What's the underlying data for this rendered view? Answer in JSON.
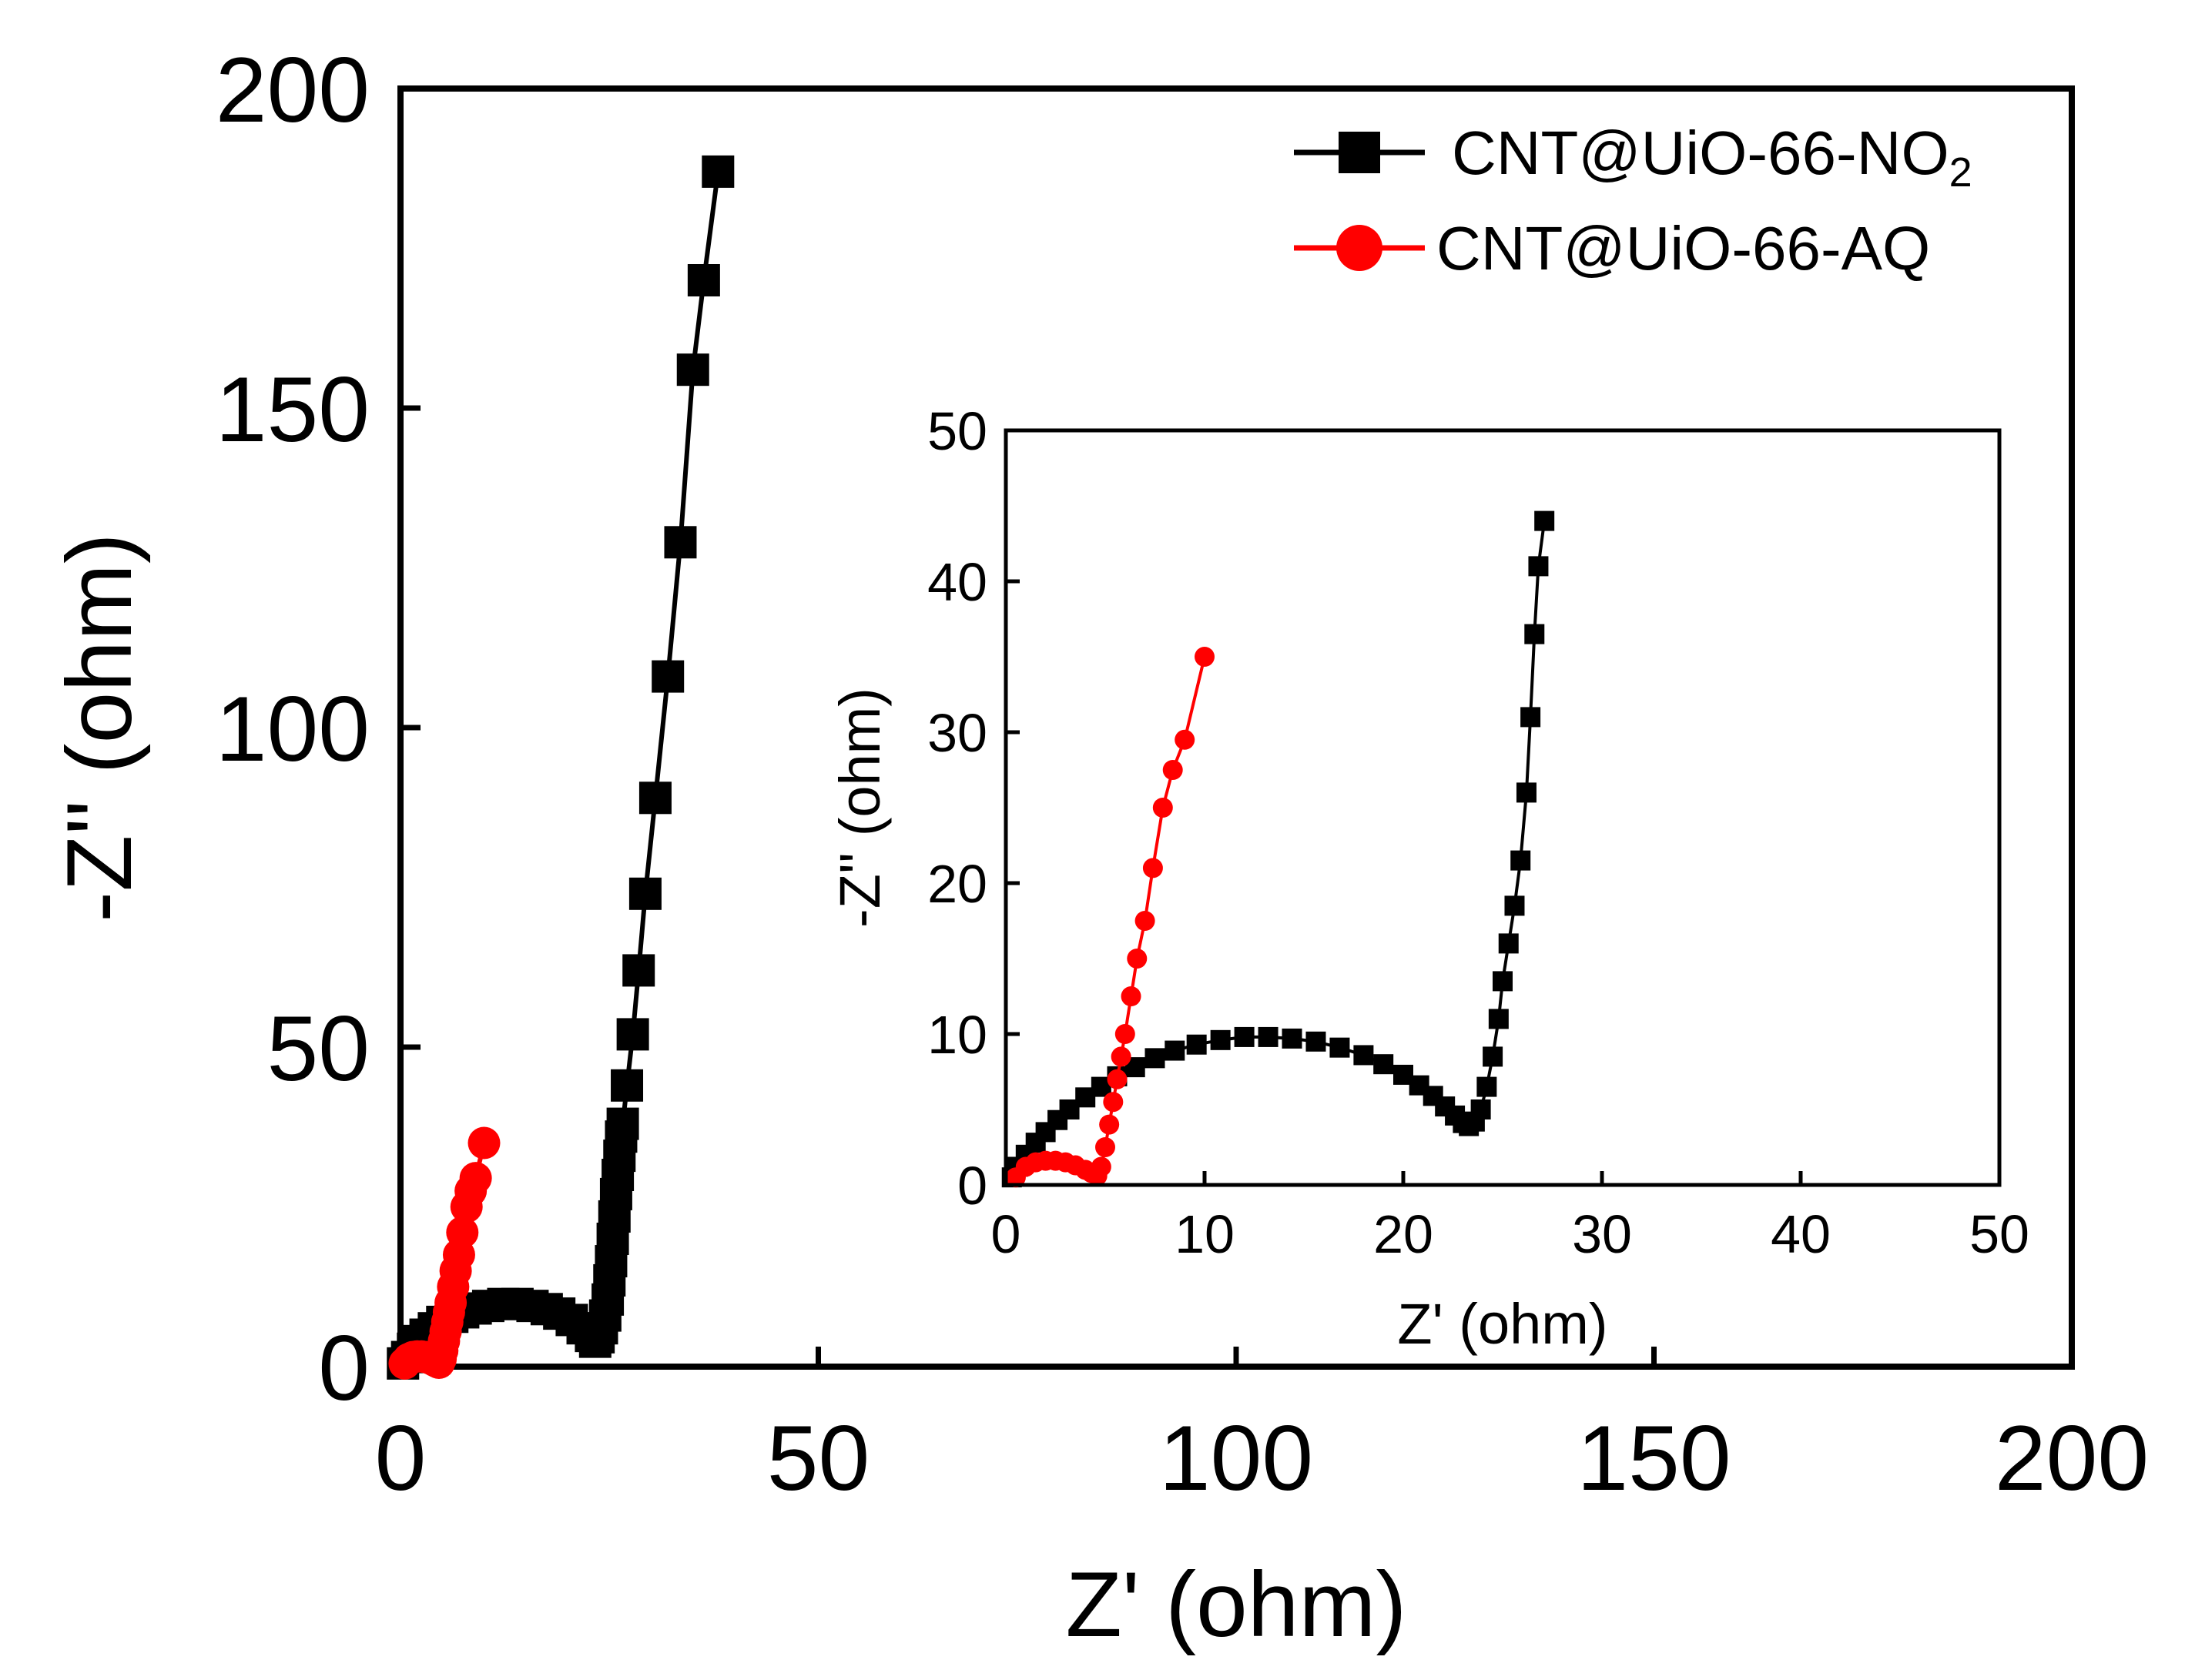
{
  "chart_data": [
    {
      "id": "main",
      "type": "scatter",
      "xlabel": "Z' (ohm)",
      "ylabel": "-Z'' (ohm)",
      "xlim": [
        0,
        200
      ],
      "ylim": [
        0,
        200
      ],
      "xticks": [
        0,
        50,
        100,
        150,
        200
      ],
      "yticks": [
        0,
        50,
        100,
        150,
        200
      ],
      "legend_position": "top-right",
      "series": [
        {
          "name": "CNT@UiO-66-NO",
          "name_sub": "2",
          "color": "#000000",
          "marker": "square",
          "x": [
            0.3,
            0.8,
            1.5,
            2.2,
            3.0,
            4.0,
            5.0,
            6.2,
            7.5,
            9.0,
            10.5,
            12.3,
            14.0,
            15.8,
            17.5,
            19.0,
            20.5,
            21.8,
            22.8,
            23.3,
            23.7,
            24.1,
            24.5,
            24.8,
            25.0,
            25.2,
            25.4,
            25.6,
            25.8,
            26.0,
            26.2,
            26.4,
            26.6,
            27.1,
            27.8,
            28.5,
            29.3,
            30.5,
            32.0,
            33.5,
            35.0,
            36.3,
            38.0
          ],
          "y": [
            0.5,
            1.5,
            2.8,
            4.0,
            5.0,
            6.0,
            7.0,
            7.8,
            8.5,
            9.1,
            9.5,
            9.8,
            9.8,
            9.5,
            9.0,
            8.3,
            7.3,
            6.0,
            4.8,
            3.9,
            4.6,
            6.0,
            8.0,
            10.5,
            13.5,
            16.5,
            20.0,
            23.5,
            27.0,
            30.0,
            33.0,
            36.0,
            38.0,
            44.0,
            52.0,
            62.0,
            74.0,
            89.0,
            108.0,
            129.0,
            156.0,
            170.0,
            187.0
          ]
        },
        {
          "name": "CNT@UiO-66-AQ",
          "color": "#ff0000",
          "marker": "circle",
          "x": [
            0.5,
            1.0,
            1.5,
            2.0,
            2.5,
            3.0,
            3.5,
            4.0,
            4.3,
            4.6,
            4.8,
            5.0,
            5.2,
            5.4,
            5.6,
            5.8,
            6.0,
            6.3,
            6.6,
            7.0,
            7.4,
            7.9,
            8.4,
            9.0,
            10.0
          ],
          "y": [
            0.5,
            1.2,
            1.5,
            1.6,
            1.6,
            1.5,
            1.3,
            1.0,
            0.8,
            0.6,
            1.2,
            2.5,
            4.0,
            5.5,
            7.0,
            8.5,
            10.0,
            12.5,
            15.0,
            17.5,
            21.0,
            25.0,
            27.5,
            29.5,
            35.0
          ]
        }
      ]
    },
    {
      "id": "inset",
      "type": "scatter",
      "xlabel": "Z' (ohm)",
      "ylabel": "-Z'' (ohm)",
      "xlim": [
        0,
        50
      ],
      "ylim": [
        0,
        50
      ],
      "xticks": [
        0,
        10,
        20,
        30,
        40,
        50
      ],
      "yticks": [
        0,
        10,
        20,
        30,
        40,
        50
      ],
      "series": [
        {
          "name": "CNT@UiO-66-NO2",
          "color": "#000000",
          "marker": "square",
          "x": [
            0.3,
            0.6,
            1.0,
            1.5,
            2.0,
            2.6,
            3.2,
            4.0,
            4.8,
            5.6,
            6.5,
            7.5,
            8.5,
            9.6,
            10.8,
            12.0,
            13.2,
            14.4,
            15.6,
            16.8,
            18.0,
            19.0,
            20.0,
            20.8,
            21.5,
            22.1,
            22.6,
            23.0,
            23.3,
            23.6,
            23.9,
            24.2,
            24.5,
            24.8,
            25.0,
            25.3,
            25.6,
            25.9,
            26.2,
            26.4,
            26.6,
            26.8,
            27.1
          ],
          "y": [
            0.5,
            1.2,
            2.0,
            2.8,
            3.5,
            4.3,
            5.0,
            5.8,
            6.5,
            7.2,
            7.8,
            8.4,
            8.9,
            9.3,
            9.6,
            9.8,
            9.8,
            9.7,
            9.5,
            9.1,
            8.6,
            8.0,
            7.3,
            6.6,
            5.9,
            5.2,
            4.6,
            4.1,
            3.9,
            4.2,
            5.0,
            6.5,
            8.5,
            11.0,
            13.5,
            16.0,
            18.5,
            21.5,
            26.0,
            31.0,
            36.5,
            41.0,
            44.0
          ]
        },
        {
          "name": "CNT@UiO-66-AQ",
          "color": "#ff0000",
          "marker": "circle",
          "x": [
            0.5,
            1.0,
            1.5,
            2.0,
            2.5,
            3.0,
            3.5,
            4.0,
            4.3,
            4.6,
            4.8,
            5.0,
            5.2,
            5.4,
            5.6,
            5.8,
            6.0,
            6.3,
            6.6,
            7.0,
            7.4,
            7.9,
            8.4,
            9.0,
            10.0
          ],
          "y": [
            0.5,
            1.2,
            1.5,
            1.6,
            1.6,
            1.5,
            1.3,
            1.0,
            0.8,
            0.6,
            1.2,
            2.5,
            4.0,
            5.5,
            7.0,
            8.5,
            10.0,
            12.5,
            15.0,
            17.5,
            21.0,
            25.0,
            27.5,
            29.5,
            35.0
          ]
        }
      ]
    }
  ]
}
